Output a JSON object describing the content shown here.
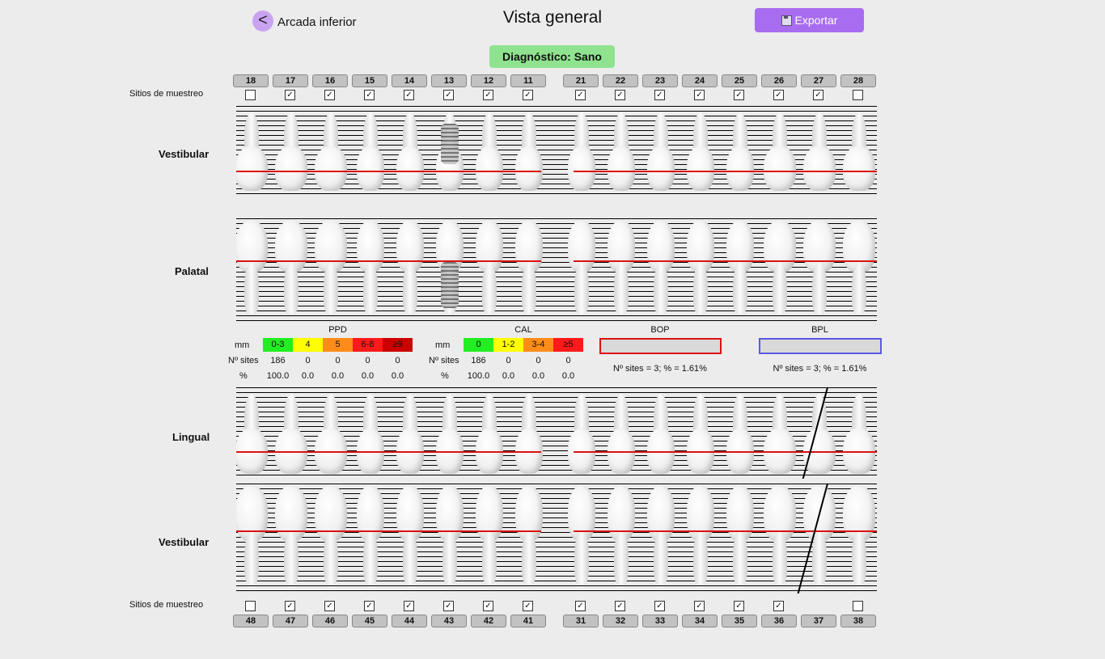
{
  "header": {
    "back_icon": "<",
    "back_label": "Arcada inferior",
    "title": "Vista general",
    "export_label": "Exportar",
    "export_icon": "floppy-disk-icon"
  },
  "diagnosis": "Diagnóstico: Sano",
  "colors": {
    "accent": "#a86cf0",
    "back_circle": "#c9a3f0",
    "diagnosis_bg": "#8fe38f",
    "gum_line": "#dd1111",
    "bop_border": "#dd1111",
    "bpl_border": "#5a5ae6"
  },
  "upper": {
    "teeth": [
      "18",
      "17",
      "16",
      "15",
      "14",
      "13",
      "12",
      "11",
      "21",
      "22",
      "23",
      "24",
      "25",
      "26",
      "27",
      "28"
    ],
    "sampling_label": "Sitios de muestreo",
    "sampled": [
      false,
      true,
      true,
      true,
      true,
      true,
      true,
      true,
      true,
      true,
      true,
      true,
      true,
      true,
      true,
      false
    ],
    "sections": [
      "Vestibular",
      "Palatal"
    ]
  },
  "lower": {
    "teeth": [
      "48",
      "47",
      "46",
      "45",
      "44",
      "43",
      "42",
      "41",
      "31",
      "32",
      "33",
      "34",
      "35",
      "36",
      "37",
      "38"
    ],
    "sampling_label": "Sitios de muestreo",
    "sampled": [
      false,
      true,
      true,
      true,
      true,
      true,
      true,
      true,
      true,
      true,
      true,
      true,
      true,
      true,
      null,
      false
    ],
    "sections": [
      "Lingual",
      "Vestibular"
    ]
  },
  "legend": {
    "ppd": {
      "title": "PPD",
      "row_labels": [
        "mm",
        "Nº sites",
        "%"
      ],
      "ranges": [
        "0-3",
        "4",
        "5",
        "6-8",
        "≥9"
      ],
      "colors": [
        "#22ee22",
        "#ffff00",
        "#ff8c1a",
        "#ff1a1a",
        "#cc0000"
      ],
      "sites": [
        "186",
        "0",
        "0",
        "0",
        "0"
      ],
      "percent": [
        "100.0",
        "0.0",
        "0.0",
        "0.0",
        "0.0"
      ]
    },
    "cal": {
      "title": "CAL",
      "row_labels": [
        "mm",
        "Nº sites",
        "%"
      ],
      "ranges": [
        "0",
        "1-2",
        "3-4",
        "≥5"
      ],
      "colors": [
        "#22ee22",
        "#ffff00",
        "#ff8c1a",
        "#ff1a1a"
      ],
      "sites": [
        "186",
        "0",
        "0",
        "0"
      ],
      "percent": [
        "100.0",
        "0.0",
        "0.0",
        "0.0"
      ]
    },
    "bop": {
      "title": "BOP",
      "summary": "Nº sites = 3; % = 1.61%"
    },
    "bpl": {
      "title": "BPL",
      "summary": "Nº sites = 3; % = 1.61%"
    }
  }
}
